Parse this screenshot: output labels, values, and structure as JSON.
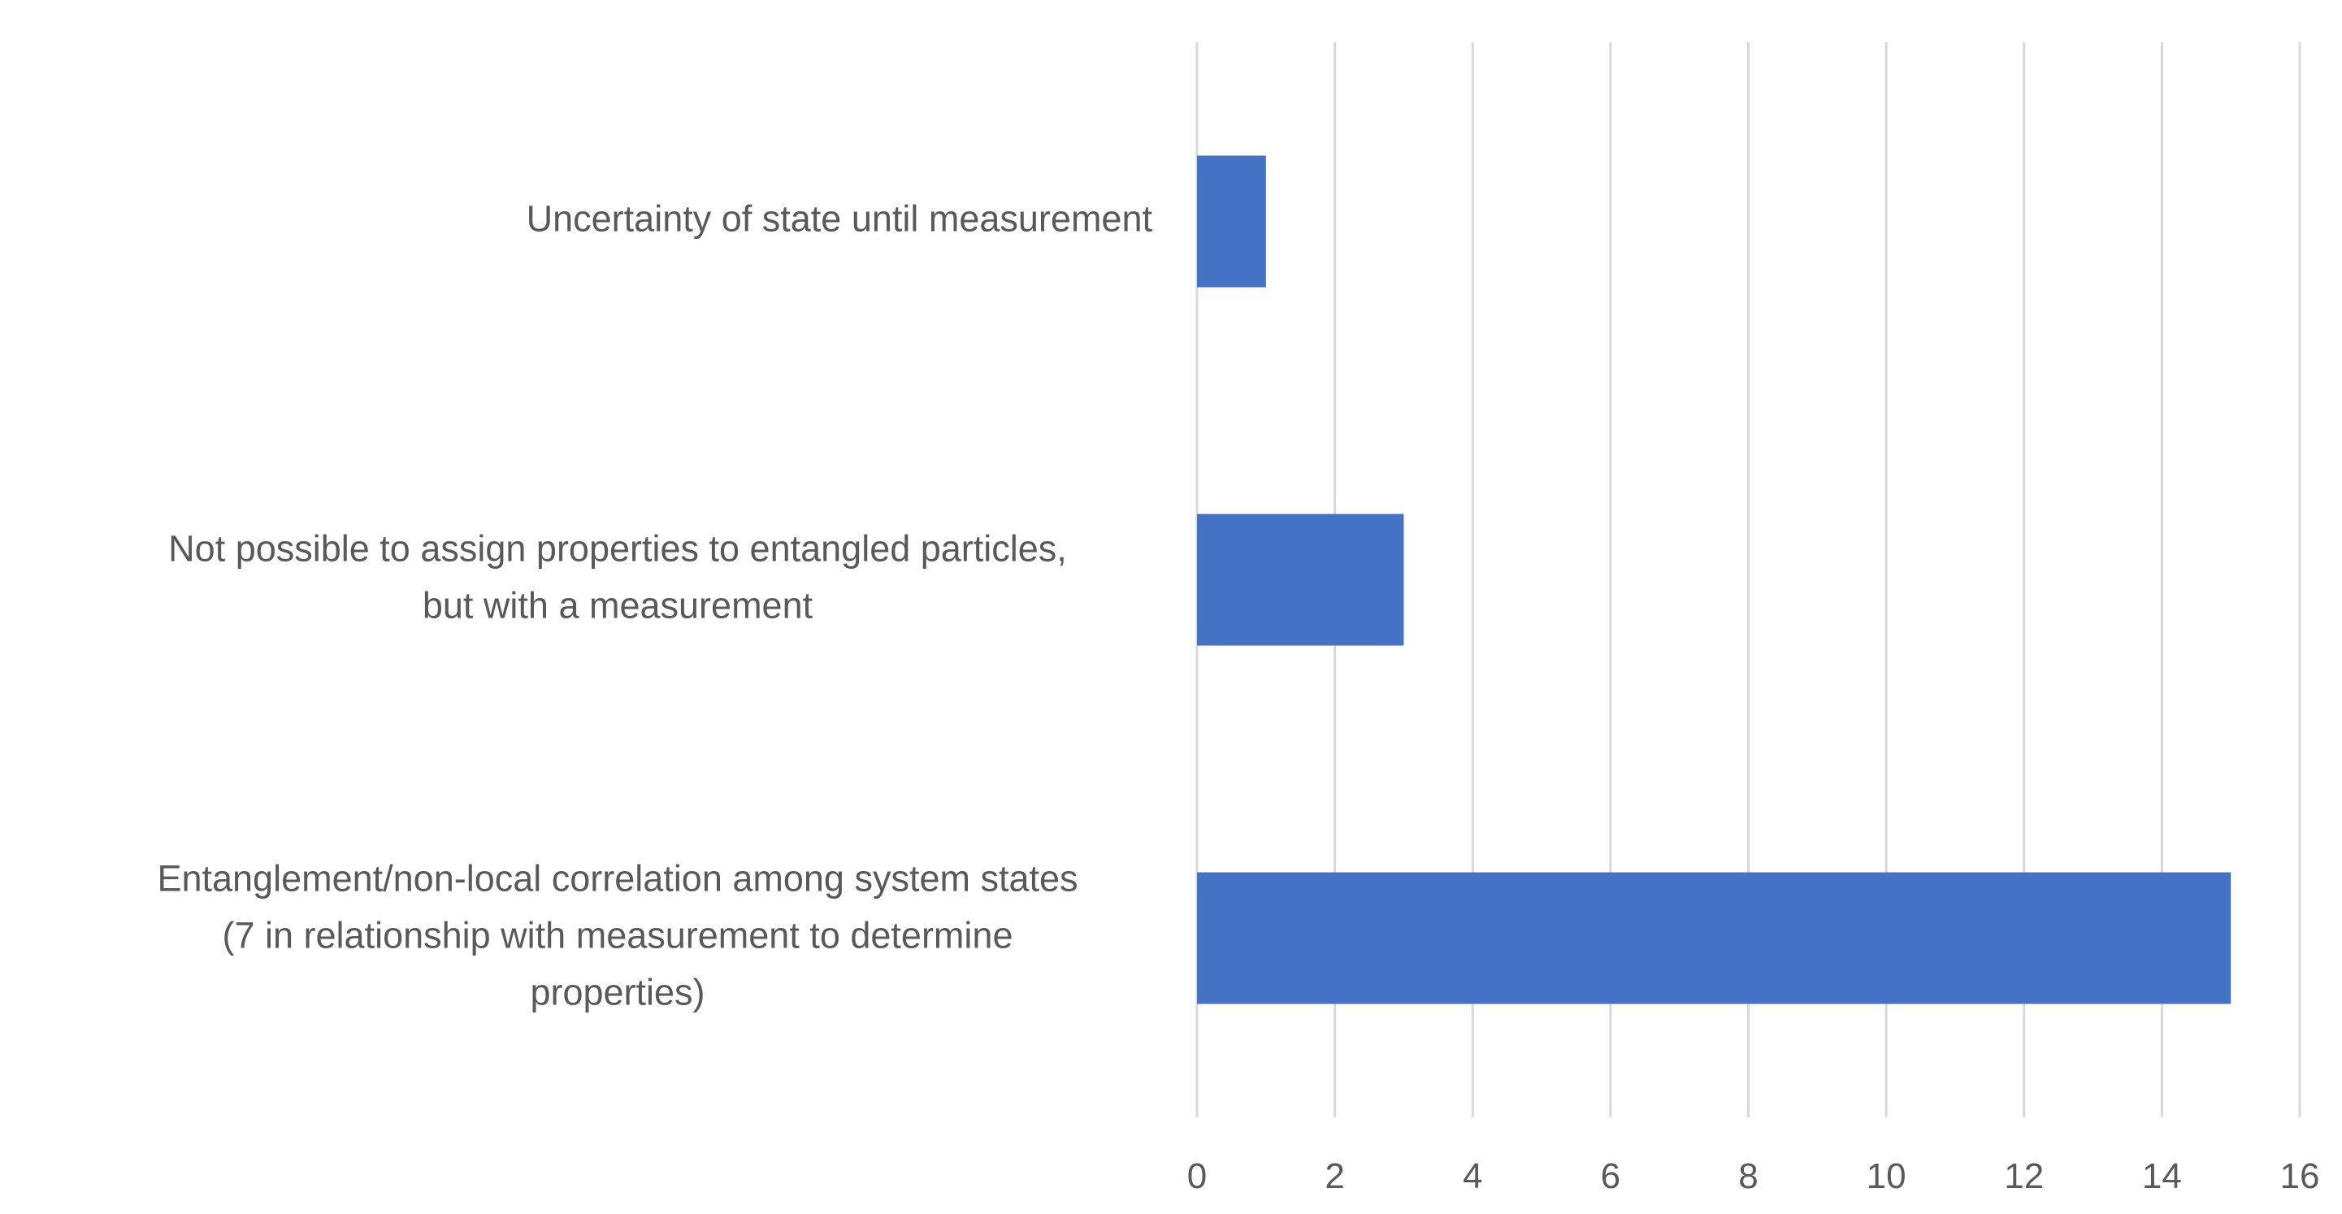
{
  "chart_data": {
    "type": "bar",
    "orientation": "horizontal",
    "categories": [
      [
        "Uncertainty of state until measurement"
      ],
      [
        "Not possible to assign properties to entangled particles,",
        "but with a measurement"
      ],
      [
        "Entanglement/non-local correlation among system states",
        "(7 in relationship with measurement to determine",
        "properties)"
      ]
    ],
    "values": [
      1,
      3,
      15
    ],
    "title": "",
    "xlabel": "",
    "ylabel": "",
    "xlim": [
      0,
      16
    ],
    "xticks": [
      0,
      2,
      4,
      6,
      8,
      10,
      12,
      14,
      16
    ],
    "grid": true,
    "legend": "none",
    "bar_color": "#4472c4",
    "grid_color": "#d9d9d9",
    "text_color": "#595959"
  }
}
